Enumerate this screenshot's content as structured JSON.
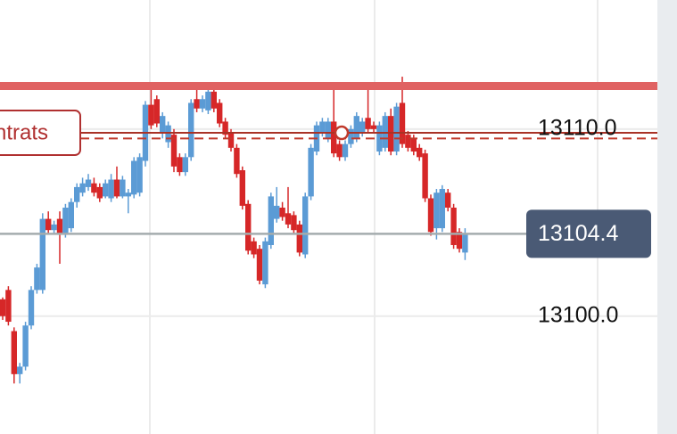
{
  "chart_data": {
    "type": "candlestick",
    "ylim": [
      13093.7,
      13116.9
    ],
    "yticks": [
      {
        "value": 13100,
        "label": "13100.0"
      },
      {
        "value": 13110,
        "label": "13110.0"
      }
    ],
    "grid": true,
    "up_color": "#5b9bd5",
    "down_color": "#d62728",
    "open": [
      13100.9,
      13101.4,
      13099.2,
      13096.9,
      13097.3,
      13099.5,
      13101.4,
      13101.4,
      13105.2,
      13104.6,
      13105.2,
      13104.4,
      13104.7,
      13106.1,
      13106.6,
      13106.9,
      13107.1,
      13106.9,
      13106.4,
      13106.3,
      13107.3,
      13106.4,
      13106.4,
      13106.5,
      13106.6,
      13108.3,
      13111.3,
      13111.6,
      13109.8,
      13109.3,
      13109.7,
      13108.5,
      13107.7,
      13108.5,
      13111.6,
      13111.1,
      13111.0,
      13112.0,
      13111.4,
      13110.4,
      13109.8,
      13109.0,
      13107.8,
      13106.0,
      13104.0,
      13103.6,
      13101.7,
      13103.8,
      13105.2,
      13105.8,
      13105.5,
      13105.4,
      13104.9,
      13103.3,
      13106.4,
      13108.8,
      13109.8,
      13109.5,
      13110.4,
      13109.2,
      13108.5,
      13109.2,
      13109.5,
      13109.8,
      13110.6,
      13110.2,
      13108.8,
      13109.0,
      13110.7,
      13108.8,
      13111.4,
      13109.7,
      13109.5,
      13109.0,
      13108.7,
      13106.3,
      13104.7,
      13104.7,
      13106.6,
      13105.8,
      13104.5,
      13103.4
    ],
    "high": [
      13101.0,
      13101.6,
      13099.4,
      13097.5,
      13099.7,
      13101.6,
      13102.8,
      13105.5,
      13105.6,
      13105.1,
      13105.6,
      13106.0,
      13106.3,
      13107.1,
      13107.4,
      13107.6,
      13107.4,
      13107.1,
      13107.3,
      13107.6,
      13108.0,
      13107.5,
      13106.8,
      13108.5,
      13108.7,
      13111.5,
      13112.2,
      13111.8,
      13110.9,
      13110.4,
      13110.0,
      13108.7,
      13108.7,
      13111.6,
      13112.1,
      13111.8,
      13112.1,
      13112.2,
      13111.6,
      13110.6,
      13110.0,
      13109.2,
      13108.0,
      13106.2,
      13104.2,
      13103.8,
      13104.2,
      13106.6,
      13106.9,
      13106.1,
      13106.9,
      13105.6,
      13105.1,
      13106.6,
      13109.2,
      13110.4,
      13110.6,
      13110.6,
      13112.2,
      13109.4,
      13109.4,
      13110.2,
      13110.9,
      13110.6,
      13112.3,
      13110.4,
      13110.4,
      13110.9,
      13111.1,
      13111.4,
      13112.8,
      13109.9,
      13109.7,
      13109.2,
      13108.9,
      13106.5,
      13106.8,
      13107.0,
      13106.8,
      13106.0,
      13104.7,
      13104.7
    ],
    "low": [
      13099.8,
      13099.5,
      13096.4,
      13096.4,
      13097.1,
      13099.3,
      13101.2,
      13101.2,
      13104.4,
      13104.4,
      13102.8,
      13104.2,
      13104.5,
      13105.8,
      13106.4,
      13106.7,
      13106.4,
      13106.1,
      13106.3,
      13106.1,
      13106.3,
      13106.3,
      13105.5,
      13106.3,
      13106.4,
      13108.0,
      13110.0,
      13110.1,
      13109.5,
      13109.0,
      13107.7,
      13107.5,
      13107.5,
      13108.3,
      13110.9,
      13110.9,
      13110.8,
      13110.9,
      13110.1,
      13109.5,
      13108.8,
      13107.4,
      13105.7,
      13103.3,
      13103.1,
      13101.7,
      13101.5,
      13103.6,
      13105.0,
      13105.1,
      13104.7,
      13104.4,
      13103.2,
      13103.1,
      13106.2,
      13108.6,
      13109.6,
      13109.3,
      13108.5,
      13108.3,
      13108.3,
      13109.0,
      13109.3,
      13109.6,
      13109.8,
      13109.8,
      13108.6,
      13108.8,
      13108.6,
      13108.6,
      13109.0,
      13108.8,
      13108.6,
      13108.3,
      13106.1,
      13104.3,
      13104.1,
      13104.5,
      13105.6,
      13103.6,
      13103.4,
      13103.0
    ],
    "close": [
      13100.0,
      13099.7,
      13096.9,
      13097.3,
      13099.5,
      13101.4,
      13102.6,
      13105.2,
      13104.6,
      13104.9,
      13104.4,
      13105.8,
      13106.1,
      13106.9,
      13107.1,
      13107.3,
      13106.6,
      13106.3,
      13107.1,
      13107.3,
      13106.4,
      13107.3,
      13106.6,
      13108.3,
      13108.5,
      13111.3,
      13110.2,
      13110.3,
      13110.7,
      13110.2,
      13108.0,
      13107.7,
      13108.5,
      13111.4,
      13111.1,
      13111.6,
      13112.0,
      13111.1,
      13110.3,
      13109.7,
      13109.0,
      13107.6,
      13105.9,
      13103.5,
      13103.3,
      13101.9,
      13104.0,
      13106.4,
      13105.9,
      13105.3,
      13104.9,
      13104.6,
      13103.4,
      13106.4,
      13109.0,
      13110.2,
      13110.4,
      13110.4,
      13108.7,
      13108.5,
      13109.2,
      13110.0,
      13110.7,
      13110.4,
      13110.0,
      13110.0,
      13110.2,
      13110.7,
      13108.8,
      13111.2,
      13109.2,
      13109.0,
      13108.8,
      13108.5,
      13106.3,
      13104.5,
      13106.6,
      13106.8,
      13105.8,
      13103.8,
      13103.6,
      13104.4
    ],
    "last_price": {
      "value": 13104.4,
      "label": "13104.4"
    },
    "resistance_line": 13112.3,
    "order_line": {
      "value": 13109.8,
      "label": "ntrats"
    },
    "stop_line": 13109.5
  }
}
